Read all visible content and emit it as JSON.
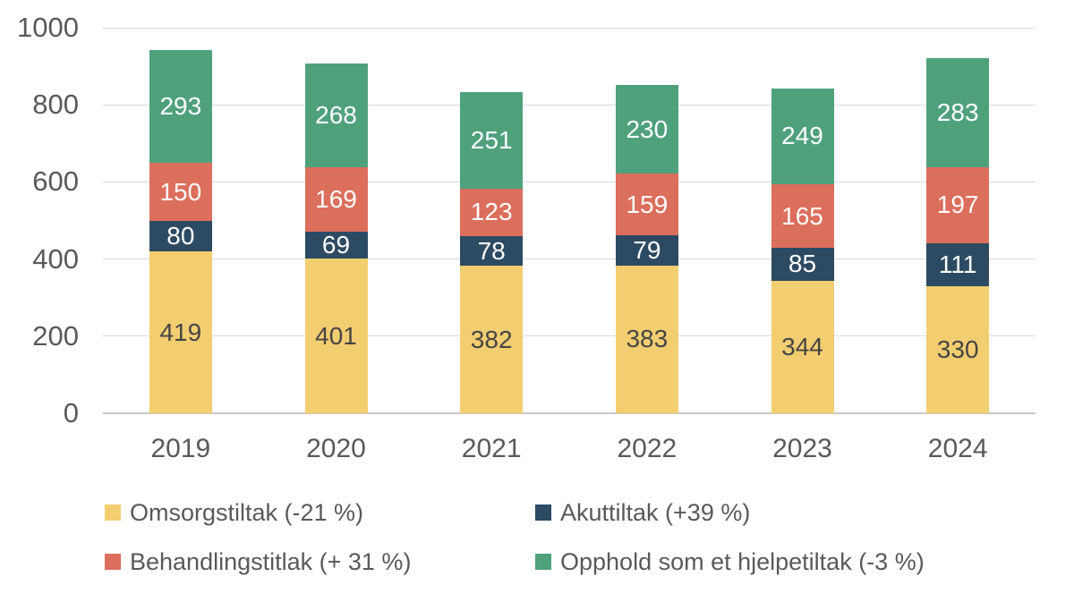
{
  "chart_data": {
    "type": "bar",
    "stacked": true,
    "title": "",
    "xlabel": "",
    "ylabel": "",
    "categories": [
      "2019",
      "2020",
      "2021",
      "2022",
      "2023",
      "2024"
    ],
    "series": [
      {
        "name": "Omsorgstiltak (-21 %)",
        "slug": "omsorgstiltak",
        "color": "#F3CE71",
        "label_color": "#454545",
        "values": [
          419,
          401,
          382,
          383,
          344,
          330
        ]
      },
      {
        "name": "Akuttiltak (+39 %)",
        "slug": "akuttiltak",
        "color": "#2D4A63",
        "label_color": "#FFFFFF",
        "values": [
          80,
          69,
          78,
          79,
          85,
          111
        ]
      },
      {
        "name": "Behandlingstitlak (+ 31 %)",
        "slug": "behandlingstitlak",
        "color": "#DC6E5C",
        "label_color": "#FFFFFF",
        "values": [
          150,
          169,
          123,
          159,
          165,
          197
        ]
      },
      {
        "name": "Opphold som et hjelpetiltak (-3 %)",
        "slug": "opphold-som-et-hjelpetiltak",
        "color": "#4FA17C",
        "label_color": "#FFFFFF",
        "values": [
          293,
          268,
          251,
          230,
          249,
          283
        ]
      }
    ],
    "y_ticks": [
      0,
      200,
      400,
      600,
      800,
      1000
    ],
    "ylim": [
      0,
      1000
    ],
    "grid": true,
    "legend_position": "bottom"
  },
  "colors": {
    "background": "#FFFFFF",
    "grid": "#D9D9D9",
    "baseline": "#C7C7C7",
    "axis_text": "#595959"
  }
}
